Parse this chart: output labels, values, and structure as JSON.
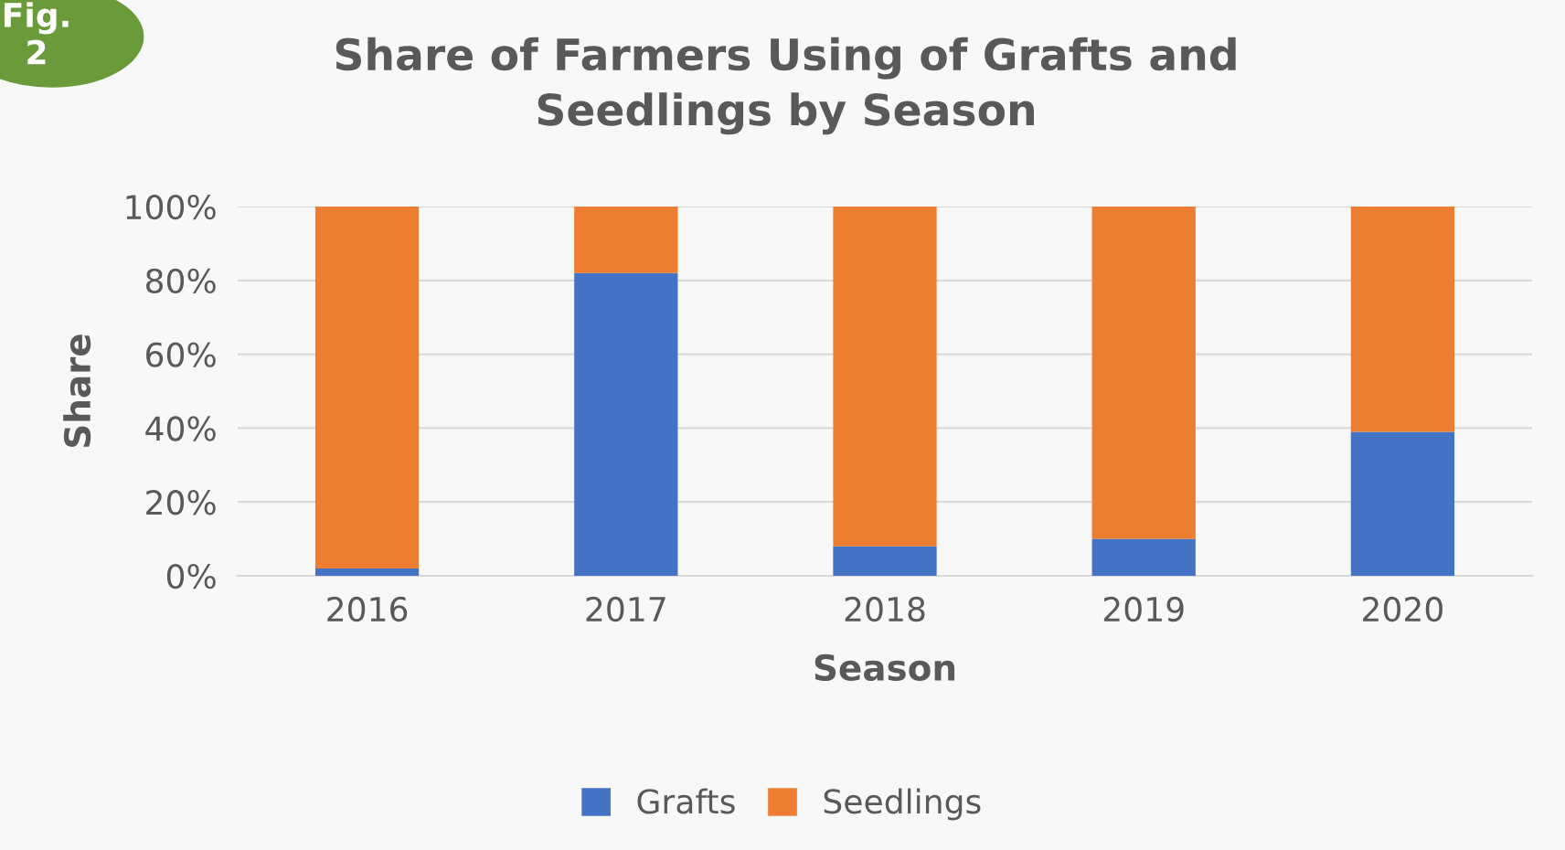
{
  "chart_data": {
    "type": "bar",
    "title": "Share of Farmers Using of Grafts and\nSeedlings by Season",
    "xlabel": "Season",
    "ylabel": "Share",
    "annotations": [
      "Fig.\n2"
    ],
    "categories": [
      "2016",
      "2017",
      "2018",
      "2019",
      "2020"
    ],
    "series": [
      {
        "name": "Grafts",
        "color": "#4472c4",
        "values": [
          2,
          82,
          8,
          10,
          39
        ]
      },
      {
        "name": "Seedlings",
        "color": "#ed7d31",
        "values": [
          98,
          18,
          92,
          90,
          61
        ]
      }
    ],
    "stacked": true,
    "ylim": [
      0,
      100
    ],
    "yticks": [
      {
        "value": 0,
        "label": "0%"
      },
      {
        "value": 20,
        "label": "20%"
      },
      {
        "value": 40,
        "label": "40%"
      },
      {
        "value": 60,
        "label": "60%"
      },
      {
        "value": 80,
        "label": "80%"
      },
      {
        "value": 100,
        "label": "100%"
      }
    ],
    "grid": "y",
    "legend": "bottom"
  }
}
